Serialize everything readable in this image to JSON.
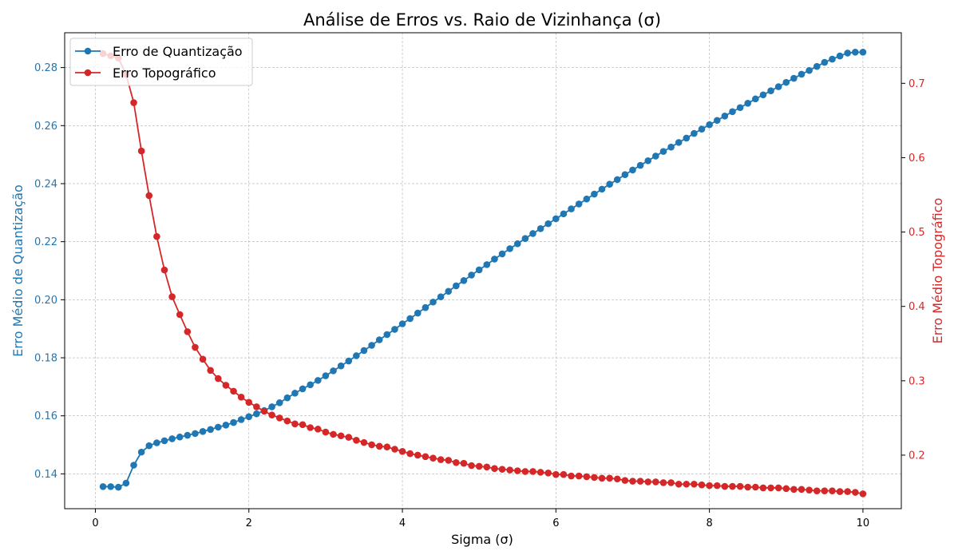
{
  "chart_data": {
    "type": "line",
    "title": "Análise de Erros vs. Raio de Vizinhança (σ)",
    "xlabel": "Sigma (σ)",
    "ylabel_left": "Erro Médio de Quantização",
    "ylabel_right": "Erro Médio Topográfico",
    "xlim": [
      -0.4,
      10.5
    ],
    "ylim_left": [
      0.128,
      0.292
    ],
    "ylim_right": [
      0.128,
      0.768
    ],
    "xticks": [
      "0",
      "2",
      "4",
      "6",
      "8",
      "10"
    ],
    "yticks_left": [
      "0.14",
      "0.16",
      "0.18",
      "0.20",
      "0.22",
      "0.24",
      "0.26",
      "0.28"
    ],
    "yticks_right": [
      "0.2",
      "0.3",
      "0.4",
      "0.5",
      "0.6",
      "0.7"
    ],
    "grid": true,
    "legend_position": "top-left",
    "x": [
      0.1,
      0.2,
      0.3,
      0.4,
      0.5,
      0.6,
      0.7,
      0.8,
      0.9,
      1.0,
      1.1,
      1.2,
      1.3,
      1.4,
      1.5,
      1.6,
      1.7,
      1.8,
      1.9,
      2.0,
      2.1,
      2.2,
      2.3,
      2.4,
      2.5,
      2.6,
      2.7,
      2.8,
      2.9,
      3.0,
      3.1,
      3.2,
      3.3,
      3.4,
      3.5,
      3.6,
      3.7,
      3.8,
      3.9,
      4.0,
      4.1,
      4.2,
      4.3,
      4.4,
      4.5,
      4.6,
      4.7,
      4.8,
      4.9,
      5.0,
      5.1,
      5.2,
      5.3,
      5.4,
      5.5,
      5.6,
      5.7,
      5.8,
      5.9,
      6.0,
      6.1,
      6.2,
      6.3,
      6.4,
      6.5,
      6.6,
      6.7,
      6.8,
      6.9,
      7.0,
      7.1,
      7.2,
      7.3,
      7.4,
      7.5,
      7.6,
      7.7,
      7.8,
      7.9,
      8.0,
      8.1,
      8.2,
      8.3,
      8.4,
      8.5,
      8.6,
      8.7,
      8.8,
      8.9,
      9.0,
      9.1,
      9.2,
      9.3,
      9.4,
      9.5,
      9.6,
      9.7,
      9.8,
      9.9,
      10.0
    ],
    "series": [
      {
        "name": "Erro de Quantização",
        "axis": "left",
        "color": "#1f77b4",
        "values": [
          0.1356,
          0.1356,
          0.1354,
          0.1368,
          0.143,
          0.1475,
          0.1497,
          0.1507,
          0.1514,
          0.1521,
          0.1527,
          0.1533,
          0.1539,
          0.1546,
          0.1553,
          0.1561,
          0.1568,
          0.1577,
          0.1587,
          0.1597,
          0.1607,
          0.1618,
          0.1631,
          0.1645,
          0.1662,
          0.1678,
          0.1693,
          0.1707,
          0.1722,
          0.1738,
          0.1755,
          0.1772,
          0.1789,
          0.1807,
          0.1825,
          0.1843,
          0.1862,
          0.188,
          0.1898,
          0.1917,
          0.1935,
          0.1954,
          0.1973,
          0.1992,
          0.201,
          0.2029,
          0.2048,
          0.2066,
          0.2085,
          0.2103,
          0.2121,
          0.214,
          0.2158,
          0.2176,
          0.2193,
          0.2211,
          0.2228,
          0.2245,
          0.2262,
          0.2279,
          0.2296,
          0.2313,
          0.233,
          0.2347,
          0.2364,
          0.2381,
          0.2398,
          0.2414,
          0.2431,
          0.2447,
          0.2463,
          0.2479,
          0.2495,
          0.2511,
          0.2526,
          0.2542,
          0.2557,
          0.2573,
          0.2588,
          0.2603,
          0.2618,
          0.2633,
          0.2648,
          0.2662,
          0.2677,
          0.2692,
          0.2706,
          0.272,
          0.2734,
          0.2749,
          0.2763,
          0.2777,
          0.279,
          0.2804,
          0.2818,
          0.2829,
          0.284,
          0.285,
          0.2853,
          0.2853
        ]
      },
      {
        "name": "Erro Topográfico",
        "axis": "right",
        "color": "#d62728",
        "values": [
          0.74,
          0.737,
          0.734,
          0.712,
          0.674,
          0.609,
          0.549,
          0.494,
          0.449,
          0.413,
          0.389,
          0.366,
          0.345,
          0.329,
          0.314,
          0.303,
          0.294,
          0.286,
          0.278,
          0.271,
          0.265,
          0.259,
          0.254,
          0.25,
          0.246,
          0.242,
          0.241,
          0.237,
          0.235,
          0.231,
          0.228,
          0.226,
          0.224,
          0.22,
          0.217,
          0.214,
          0.212,
          0.211,
          0.208,
          0.205,
          0.202,
          0.2,
          0.198,
          0.196,
          0.194,
          0.193,
          0.19,
          0.189,
          0.186,
          0.185,
          0.184,
          0.182,
          0.181,
          0.18,
          0.179,
          0.178,
          0.178,
          0.177,
          0.176,
          0.174,
          0.174,
          0.172,
          0.172,
          0.171,
          0.17,
          0.169,
          0.169,
          0.168,
          0.166,
          0.165,
          0.165,
          0.164,
          0.164,
          0.163,
          0.163,
          0.161,
          0.161,
          0.161,
          0.16,
          0.159,
          0.159,
          0.158,
          0.158,
          0.158,
          0.157,
          0.157,
          0.156,
          0.156,
          0.156,
          0.155,
          0.154,
          0.154,
          0.153,
          0.152,
          0.152,
          0.152,
          0.151,
          0.151,
          0.15,
          0.148
        ]
      }
    ]
  }
}
